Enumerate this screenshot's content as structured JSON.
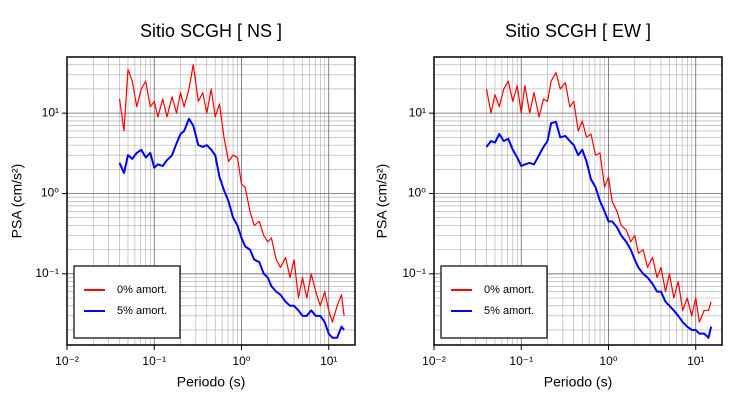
{
  "chart_data": [
    {
      "type": "line",
      "title": "Sitio SCGH [ NS ]",
      "xlabel": "Periodo (s)",
      "ylabel": "PSA (cm/s²)",
      "xscale": "log",
      "yscale": "log",
      "grid": true,
      "legend": "lower left",
      "xlim": [
        0.01,
        20
      ],
      "ylim": [
        0.013,
        50
      ],
      "xticks": [
        {
          "value": 0.01,
          "label": "10⁻²"
        },
        {
          "value": 0.1,
          "label": "10⁻¹"
        },
        {
          "value": 1,
          "label": "10⁰"
        },
        {
          "value": 10,
          "label": "10¹"
        }
      ],
      "yticks": [
        {
          "value": 0.1,
          "label": "10⁻¹"
        },
        {
          "value": 1,
          "label": "10⁰"
        },
        {
          "value": 10,
          "label": "10¹"
        }
      ],
      "xminor": [
        0.02,
        0.03,
        0.04,
        0.05,
        0.06,
        0.07,
        0.08,
        0.09,
        0.2,
        0.3,
        0.4,
        0.5,
        0.6,
        0.7,
        0.8,
        0.9,
        2,
        3,
        4,
        5,
        6,
        7,
        8,
        9
      ],
      "yminor": [
        0.02,
        0.03,
        0.04,
        0.05,
        0.06,
        0.07,
        0.08,
        0.09,
        0.2,
        0.3,
        0.4,
        0.5,
        0.6,
        0.7,
        0.8,
        0.9,
        2,
        3,
        4,
        5,
        6,
        7,
        8,
        9,
        20,
        30,
        40
      ],
      "x": [
        0.04,
        0.045,
        0.05,
        0.056,
        0.063,
        0.071,
        0.08,
        0.09,
        0.1,
        0.11,
        0.125,
        0.14,
        0.16,
        0.18,
        0.2,
        0.22,
        0.25,
        0.28,
        0.32,
        0.36,
        0.4,
        0.45,
        0.5,
        0.56,
        0.63,
        0.71,
        0.8,
        0.9,
        1.0,
        1.1,
        1.25,
        1.4,
        1.6,
        1.8,
        2.0,
        2.2,
        2.5,
        2.8,
        3.2,
        3.6,
        4.0,
        4.5,
        5.0,
        5.6,
        6.3,
        7.1,
        8.0,
        9.0,
        10,
        11,
        12.5,
        14,
        15
      ],
      "series": [
        {
          "name": "0% amort.",
          "color": "#ff0000",
          "width": 1.2,
          "values": [
            15,
            6,
            35,
            25,
            12,
            20,
            25,
            12,
            14,
            9,
            15,
            9,
            16,
            10,
            18,
            12,
            20,
            40,
            14,
            18,
            10,
            20,
            9,
            13,
            5,
            2.5,
            3,
            2.8,
            1.3,
            1.2,
            0.6,
            0.4,
            0.45,
            0.3,
            0.25,
            0.28,
            0.15,
            0.12,
            0.16,
            0.09,
            0.15,
            0.05,
            0.09,
            0.05,
            0.1,
            0.06,
            0.04,
            0.06,
            0.035,
            0.025,
            0.04,
            0.055,
            0.03
          ]
        },
        {
          "name": "5% amort.",
          "color": "#0000ff",
          "width": 2,
          "values": [
            2.4,
            1.8,
            3,
            2.7,
            3.2,
            3.5,
            2.8,
            3.2,
            2.1,
            2.3,
            2.2,
            2.6,
            3.0,
            4.2,
            5.5,
            6,
            8.5,
            7,
            4,
            3.8,
            4.0,
            3.5,
            3.0,
            1.6,
            1.1,
            0.8,
            0.5,
            0.4,
            0.28,
            0.22,
            0.2,
            0.15,
            0.14,
            0.1,
            0.09,
            0.07,
            0.06,
            0.055,
            0.045,
            0.04,
            0.04,
            0.035,
            0.03,
            0.03,
            0.035,
            0.03,
            0.03,
            0.025,
            0.018,
            0.016,
            0.016,
            0.022,
            0.02
          ]
        }
      ]
    },
    {
      "type": "line",
      "title": "Sitio SCGH [ EW ]",
      "xlabel": "Periodo (s)",
      "ylabel": "PSA (cm/s²)",
      "xscale": "log",
      "yscale": "log",
      "grid": true,
      "legend": "lower left",
      "xlim": [
        0.01,
        20
      ],
      "ylim": [
        0.013,
        50
      ],
      "xticks": [
        {
          "value": 0.01,
          "label": "10⁻²"
        },
        {
          "value": 0.1,
          "label": "10⁻¹"
        },
        {
          "value": 1,
          "label": "10⁰"
        },
        {
          "value": 10,
          "label": "10¹"
        }
      ],
      "yticks": [
        {
          "value": 0.1,
          "label": "10⁻¹"
        },
        {
          "value": 1,
          "label": "10⁰"
        },
        {
          "value": 10,
          "label": "10¹"
        }
      ],
      "xminor": [
        0.02,
        0.03,
        0.04,
        0.05,
        0.06,
        0.07,
        0.08,
        0.09,
        0.2,
        0.3,
        0.4,
        0.5,
        0.6,
        0.7,
        0.8,
        0.9,
        2,
        3,
        4,
        5,
        6,
        7,
        8,
        9
      ],
      "yminor": [
        0.02,
        0.03,
        0.04,
        0.05,
        0.06,
        0.07,
        0.08,
        0.09,
        0.2,
        0.3,
        0.4,
        0.5,
        0.6,
        0.7,
        0.8,
        0.9,
        2,
        3,
        4,
        5,
        6,
        7,
        8,
        9,
        20,
        30,
        40
      ],
      "x": [
        0.04,
        0.045,
        0.05,
        0.056,
        0.063,
        0.071,
        0.08,
        0.09,
        0.1,
        0.11,
        0.125,
        0.14,
        0.16,
        0.18,
        0.2,
        0.22,
        0.25,
        0.28,
        0.32,
        0.36,
        0.4,
        0.45,
        0.5,
        0.56,
        0.63,
        0.71,
        0.8,
        0.9,
        1.0,
        1.1,
        1.25,
        1.4,
        1.6,
        1.8,
        2.0,
        2.2,
        2.5,
        2.8,
        3.2,
        3.6,
        4.0,
        4.5,
        5.0,
        5.6,
        6.3,
        7.1,
        8.0,
        9.0,
        10,
        11,
        12.5,
        14,
        15
      ],
      "series": [
        {
          "name": "0% amort.",
          "color": "#ff0000",
          "width": 1.2,
          "values": [
            20,
            10,
            17,
            12,
            20,
            25,
            14,
            22,
            10,
            22,
            10,
            18,
            9,
            15,
            14,
            25,
            32,
            20,
            24,
            12,
            14,
            6,
            8,
            5,
            5.5,
            3,
            3.2,
            1.2,
            1.6,
            0.8,
            0.6,
            0.4,
            0.35,
            0.25,
            0.3,
            0.18,
            0.2,
            0.12,
            0.16,
            0.09,
            0.12,
            0.06,
            0.1,
            0.05,
            0.08,
            0.035,
            0.05,
            0.03,
            0.05,
            0.025,
            0.035,
            0.035,
            0.045
          ]
        },
        {
          "name": "5% amort.",
          "color": "#0000ff",
          "width": 2,
          "values": [
            3.8,
            4.5,
            4.3,
            5.5,
            4.5,
            4.8,
            3.5,
            2.8,
            2.2,
            2.3,
            2.4,
            2.3,
            3,
            3.8,
            4.5,
            7.5,
            7.8,
            5,
            5.2,
            4.5,
            4,
            3,
            3.5,
            2.5,
            1.5,
            1.2,
            0.8,
            0.6,
            0.45,
            0.45,
            0.38,
            0.3,
            0.25,
            0.2,
            0.15,
            0.12,
            0.1,
            0.09,
            0.075,
            0.06,
            0.06,
            0.045,
            0.04,
            0.035,
            0.03,
            0.025,
            0.022,
            0.02,
            0.02,
            0.018,
            0.018,
            0.016,
            0.022
          ]
        }
      ]
    }
  ]
}
